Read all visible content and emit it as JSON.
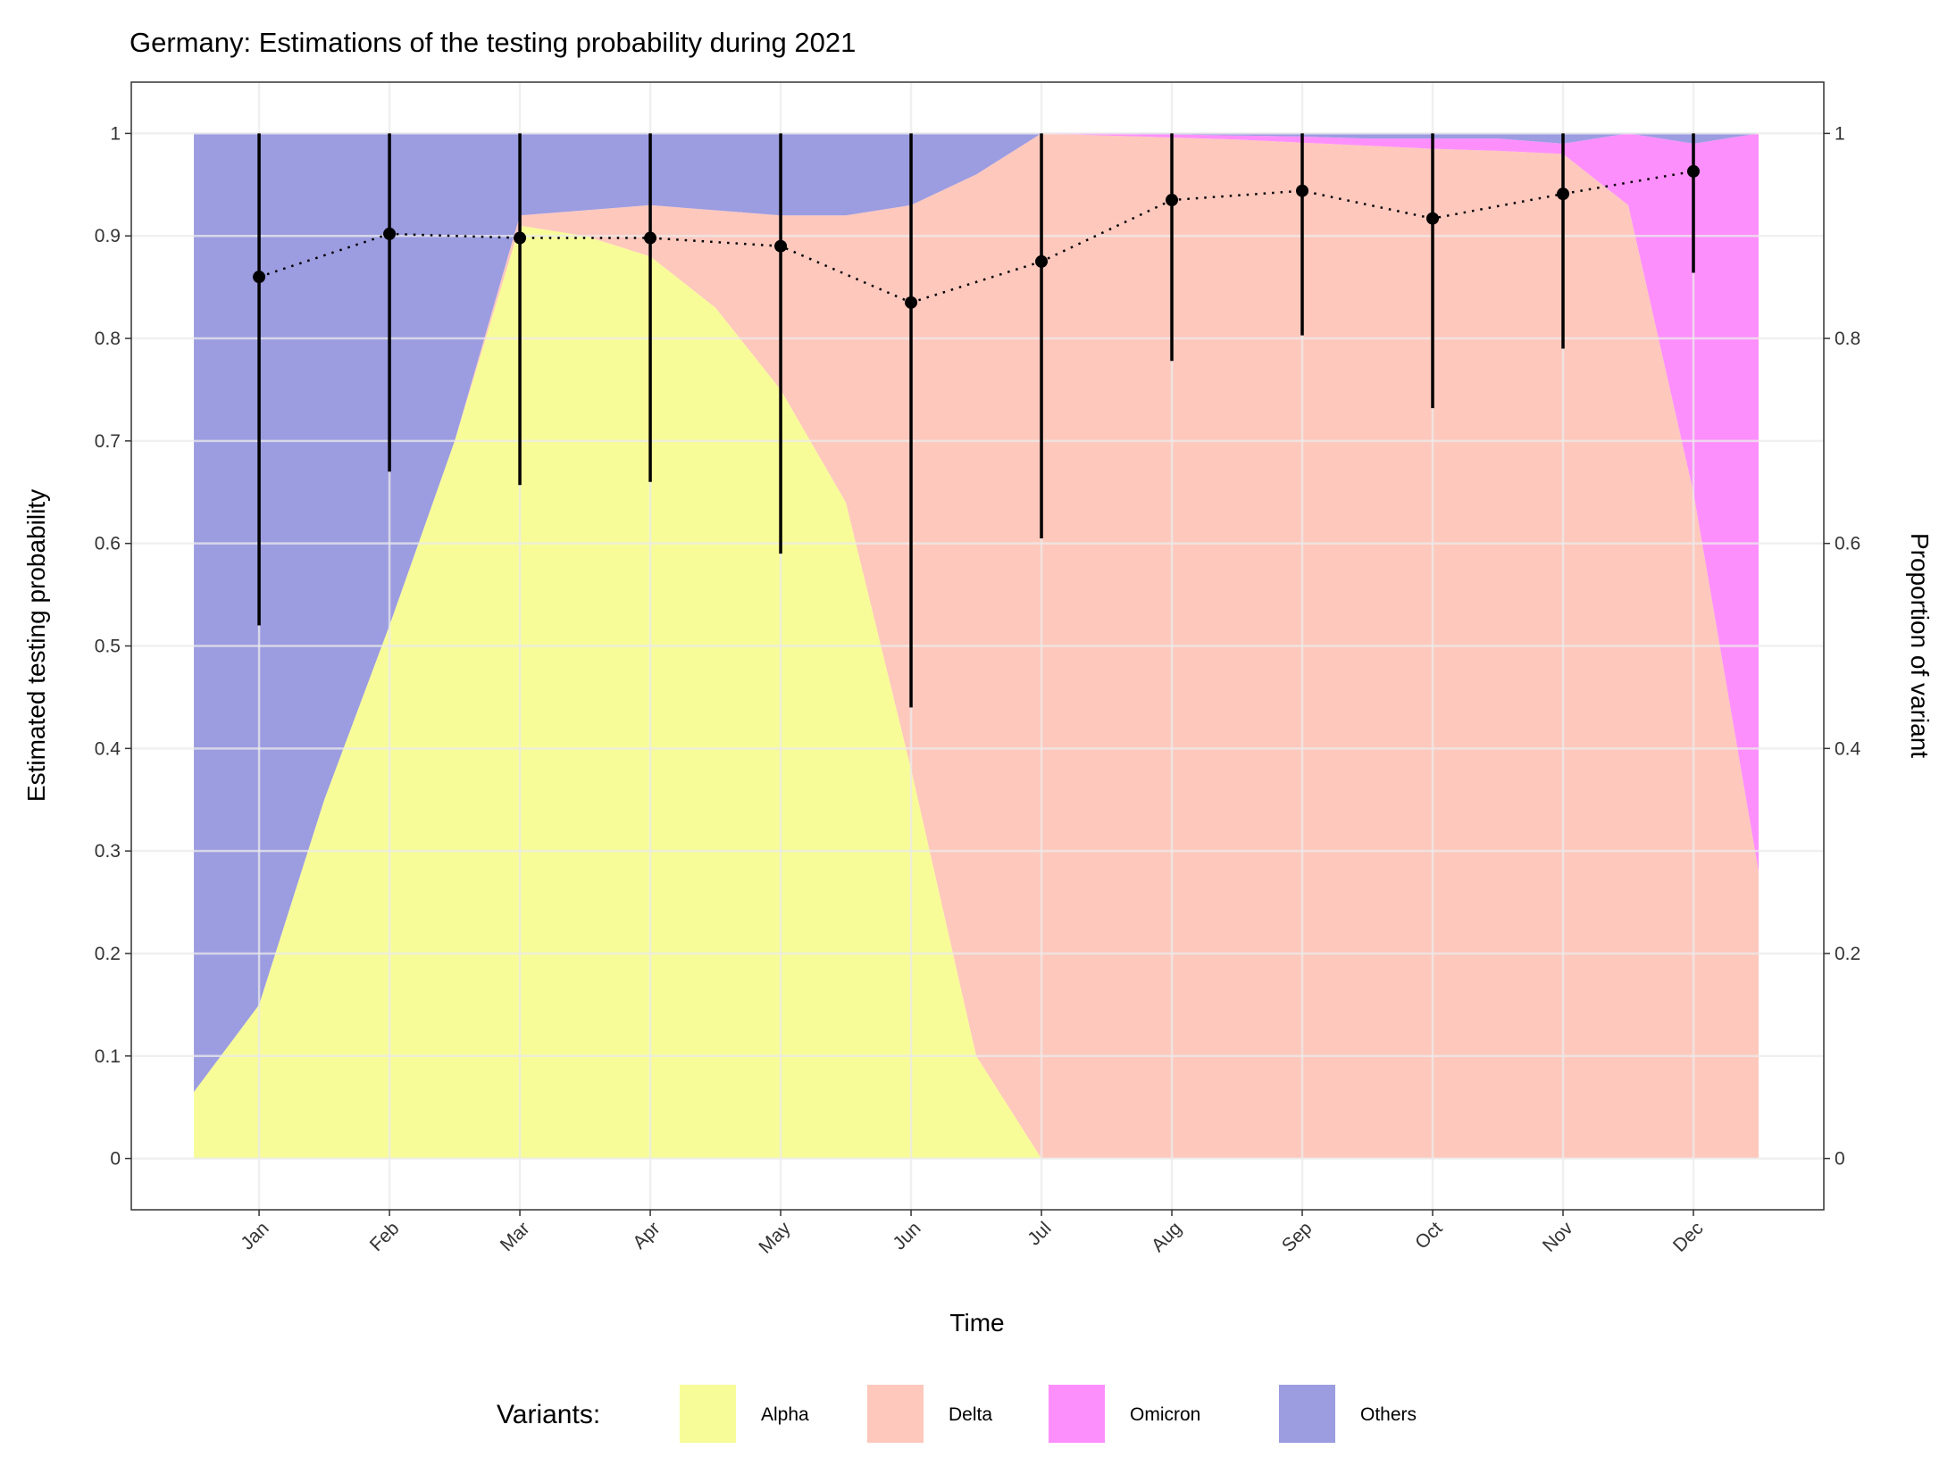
{
  "chart_data": [
    {
      "type": "errorbar",
      "title": "Germany: Estimations of the testing probability during 2021",
      "xlabel": "Time",
      "ylabel": "Estimated testing probability",
      "xlim": [
        0.02,
        13.0
      ],
      "xticks": [
        {
          "value": 1,
          "label": "Jan"
        },
        {
          "value": 2,
          "label": "Feb"
        },
        {
          "value": 3,
          "label": "Mar"
        },
        {
          "value": 4,
          "label": "Apr"
        },
        {
          "value": 5,
          "label": "May"
        },
        {
          "value": 6,
          "label": "Jun"
        },
        {
          "value": 7,
          "label": "Jul"
        },
        {
          "value": 8,
          "label": "Aug"
        },
        {
          "value": 9,
          "label": "Sep"
        },
        {
          "value": 10,
          "label": "Oct"
        },
        {
          "value": 11,
          "label": "Nov"
        },
        {
          "value": 12,
          "label": "Dec"
        }
      ],
      "ylim": [
        -0.05,
        1.05
      ],
      "yticks": [
        0,
        0.1,
        0.2,
        0.3,
        0.4,
        0.5,
        0.6,
        0.7,
        0.8,
        0.9,
        1
      ],
      "grid": true,
      "color": "#000000",
      "x": [
        1,
        2,
        3,
        4,
        5,
        6,
        7,
        8,
        9,
        10,
        11,
        12
      ],
      "values": [
        0.86,
        0.902,
        0.898,
        0.898,
        0.89,
        0.835,
        0.875,
        0.935,
        0.944,
        0.917,
        0.941,
        0.963
      ],
      "lower": [
        0.52,
        0.67,
        0.657,
        0.66,
        0.59,
        0.44,
        0.605,
        0.778,
        0.803,
        0.732,
        0.79,
        0.864
      ],
      "upper": [
        1.0,
        1.0,
        1.0,
        1.0,
        1.0,
        1.0,
        1.0,
        1.0,
        1.0,
        1.0,
        1.0,
        1.0
      ]
    },
    {
      "type": "area",
      "stacked": true,
      "y2label": "Proportion of variant",
      "y2lim": [
        -0.05,
        1.05
      ],
      "y2ticks": [
        0,
        0.2,
        0.4,
        0.6,
        0.8,
        1
      ],
      "legend_title": "Variants:",
      "legend": "bottom",
      "x": [
        0.5,
        1,
        1.5,
        2,
        2.5,
        3,
        3.5,
        4,
        4.5,
        5,
        5.5,
        6,
        6.5,
        7,
        7.5,
        8,
        8.5,
        9,
        9.5,
        10,
        10.5,
        11,
        11.5,
        12,
        12.5
      ],
      "series": [
        {
          "name": "Alpha",
          "color": "#f8fc98",
          "values": [
            0.065,
            0.15,
            0.35,
            0.52,
            0.7,
            0.91,
            0.9,
            0.88,
            0.83,
            0.75,
            0.64,
            0.38,
            0.1,
            0,
            0,
            0,
            0,
            0,
            0,
            0,
            0,
            0,
            0,
            0,
            0
          ]
        },
        {
          "name": "Delta",
          "color": "#fec8bd",
          "values": [
            0,
            0,
            0,
            0,
            0,
            0.01,
            0.025,
            0.05,
            0.095,
            0.17,
            0.28,
            0.55,
            0.86,
            1.0,
            0.998,
            0.996,
            0.994,
            0.991,
            0.988,
            0.985,
            0.983,
            0.98,
            0.93,
            0.65,
            0.28
          ]
        },
        {
          "name": "Omicron",
          "color": "#fd8ffc",
          "values": [
            0,
            0,
            0,
            0,
            0,
            0,
            0,
            0,
            0,
            0,
            0,
            0,
            0,
            0,
            0.002,
            0.003,
            0.004,
            0.006,
            0.007,
            0.01,
            0.012,
            0.01,
            0.07,
            0.34,
            0.72
          ]
        },
        {
          "name": "Others",
          "color": "#9c9ce1",
          "values": [
            0.935,
            0.85,
            0.65,
            0.48,
            0.3,
            0.08,
            0.075,
            0.07,
            0.075,
            0.08,
            0.08,
            0.07,
            0.04,
            0,
            0,
            0.001,
            0.002,
            0.003,
            0.005,
            0.005,
            0.005,
            0.01,
            0,
            0.01,
            0
          ]
        }
      ]
    }
  ]
}
